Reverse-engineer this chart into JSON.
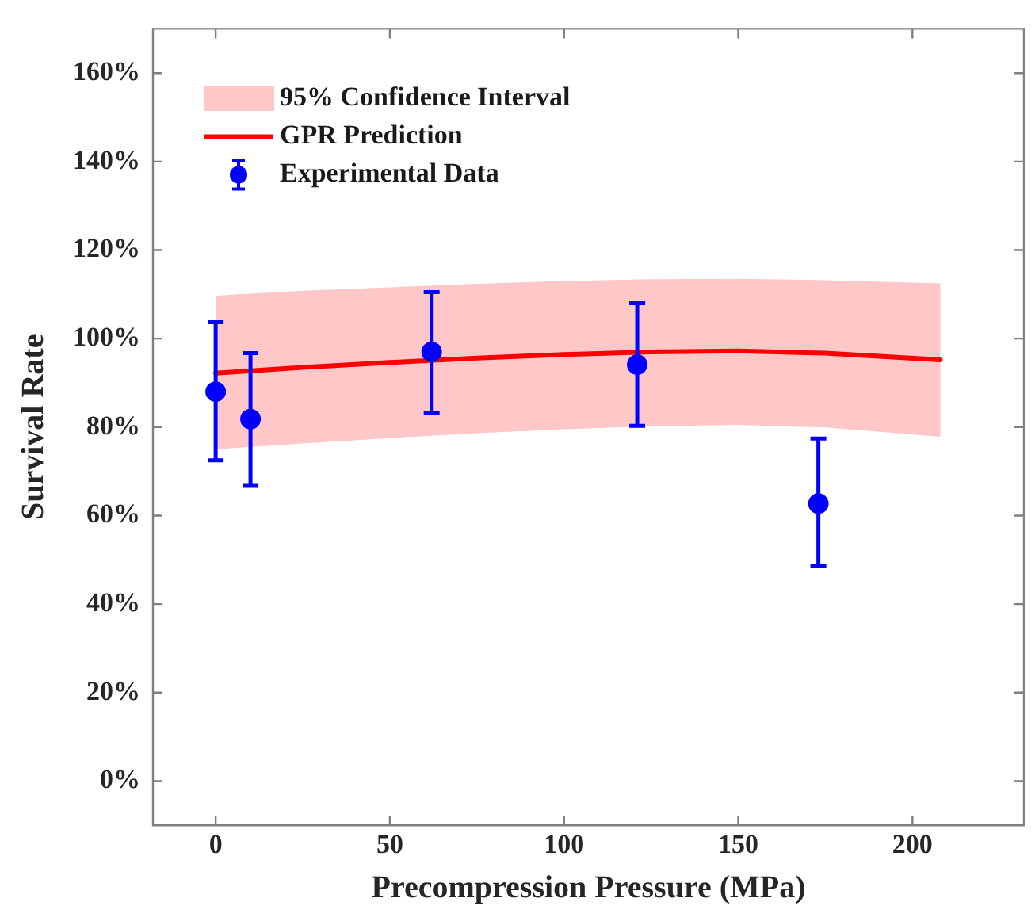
{
  "chart_data": {
    "type": "line",
    "xlabel": "Precompression Pressure (MPa)",
    "ylabel": "Survival Rate",
    "xlim": [
      -18,
      232
    ],
    "xticks": [
      0,
      50,
      100,
      150,
      200
    ],
    "ylim": [
      -10,
      170
    ],
    "yticks": [
      {
        "value": 0,
        "label": "0%"
      },
      {
        "value": 20,
        "label": "20%"
      },
      {
        "value": 40,
        "label": "40%"
      },
      {
        "value": 60,
        "label": "60%"
      },
      {
        "value": 80,
        "label": "80%"
      },
      {
        "value": 100,
        "label": "100%"
      },
      {
        "value": 120,
        "label": "120%"
      },
      {
        "value": 140,
        "label": "140%"
      },
      {
        "value": 160,
        "label": "160%"
      }
    ],
    "grid": false,
    "legend": "top left",
    "annotations": [
      "95% Confidence Interval"
    ],
    "series": [
      {
        "name": "GPR Prediction",
        "color": "#ff0000",
        "marker": "none",
        "line_style": "solid",
        "x": [
          0,
          25,
          50,
          75,
          100,
          125,
          150,
          175,
          208
        ],
        "values": [
          92.2,
          93.5,
          94.6,
          95.6,
          96.4,
          97.0,
          97.2,
          96.7,
          95.2
        ],
        "lower": [
          75.0,
          76.3,
          77.5,
          78.6,
          79.5,
          80.2,
          80.5,
          79.9,
          77.8
        ],
        "upper": [
          109.7,
          110.8,
          111.6,
          112.4,
          113.0,
          113.4,
          113.5,
          113.2,
          112.5
        ]
      },
      {
        "type": "scatter",
        "name": "Experimental Data",
        "color": "#0000ff",
        "marker": "circle",
        "x": [
          0,
          10,
          62,
          121,
          173
        ],
        "values": [
          88,
          81.8,
          97,
          94.1,
          62.7
        ],
        "errors": [
          [
            72.5,
            103.7
          ],
          [
            66.7,
            96.7
          ],
          [
            83.1,
            110.5
          ],
          [
            80.3,
            108
          ],
          [
            48.7,
            77.4
          ]
        ]
      }
    ]
  }
}
